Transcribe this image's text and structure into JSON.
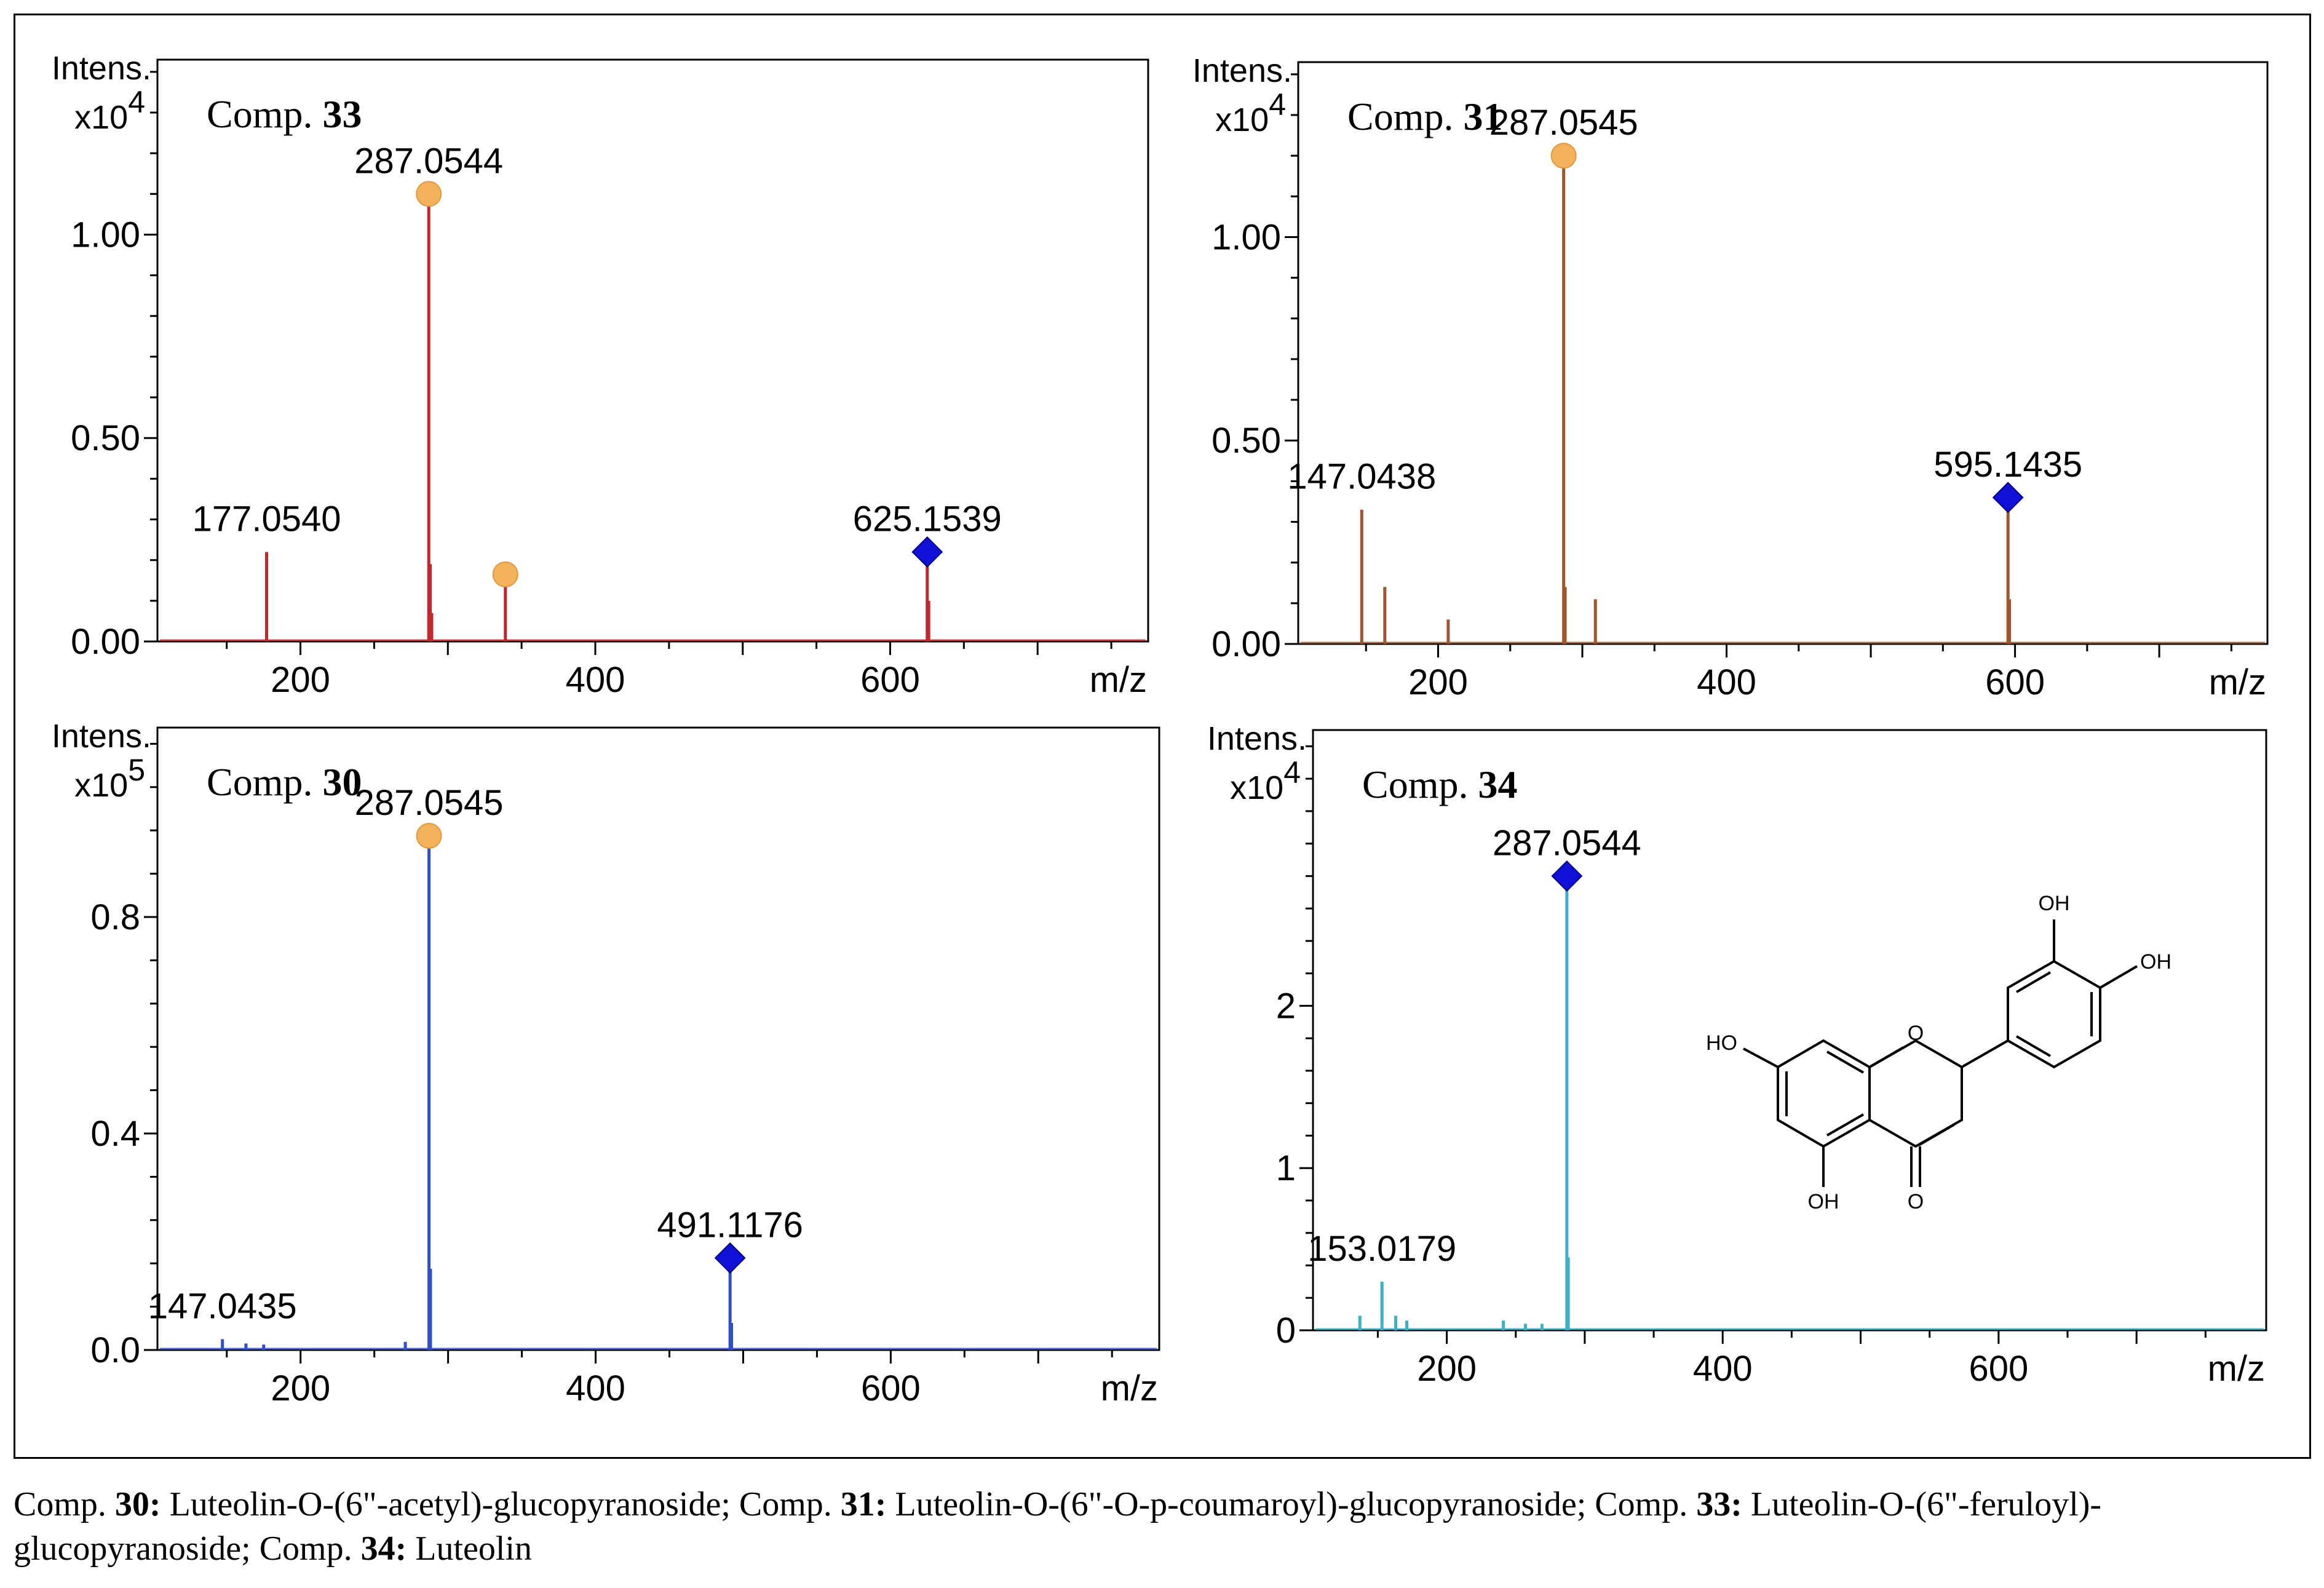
{
  "chart_data": [
    {
      "type": "bar",
      "subtype": "mass-spectrum-stick",
      "title_prefix": "Comp.",
      "title_number": "33",
      "ylabel": "Intens.",
      "yscale_label": "x10",
      "yscale_exp": "4",
      "xlabel": "m/z",
      "xlim": [
        103,
        775
      ],
      "ylim": [
        0,
        1.43
      ],
      "xticks": [
        200,
        400,
        600
      ],
      "xtick_labels": [
        "200",
        "400",
        "600"
      ],
      "yticks": [
        0,
        0.5,
        1.0
      ],
      "ytick_labels": [
        "0.00",
        "0.50",
        "1.00"
      ],
      "color": "#c0282d",
      "peaks": [
        {
          "mz": 177.054,
          "intensity": 0.22,
          "label": "177.0540"
        },
        {
          "mz": 287.0544,
          "intensity": 1.1,
          "label": "287.0544",
          "marker": "circle"
        },
        {
          "mz": 288.05,
          "intensity": 0.19
        },
        {
          "mz": 289.05,
          "intensity": 0.07
        },
        {
          "mz": 339.0,
          "intensity": 0.165,
          "marker": "circle"
        },
        {
          "mz": 625.1539,
          "intensity": 0.22,
          "label": "625.1539",
          "marker": "diamond"
        },
        {
          "mz": 626.15,
          "intensity": 0.1
        }
      ]
    },
    {
      "type": "bar",
      "subtype": "mass-spectrum-stick",
      "title_prefix": "Comp.",
      "title_number": "31",
      "ylabel": "Intens.",
      "yscale_label": "x10",
      "yscale_exp": "4",
      "xlabel": "m/z",
      "xlim": [
        103,
        775
      ],
      "ylim": [
        0,
        1.43
      ],
      "xticks": [
        200,
        400,
        600
      ],
      "xtick_labels": [
        "200",
        "400",
        "600"
      ],
      "yticks": [
        0,
        0.5,
        1.0
      ],
      "ytick_labels": [
        "0.00",
        "0.50",
        "1.00"
      ],
      "color": "#a0552d",
      "peaks": [
        {
          "mz": 147.0438,
          "intensity": 0.33,
          "label": "147.0438"
        },
        {
          "mz": 163.04,
          "intensity": 0.14
        },
        {
          "mz": 207.0,
          "intensity": 0.06
        },
        {
          "mz": 287.0545,
          "intensity": 1.2,
          "label": "287.0545",
          "marker": "circle"
        },
        {
          "mz": 288.05,
          "intensity": 0.14
        },
        {
          "mz": 309.04,
          "intensity": 0.11
        },
        {
          "mz": 595.1435,
          "intensity": 0.36,
          "label": "595.1435",
          "marker": "diamond"
        },
        {
          "mz": 596.15,
          "intensity": 0.11
        }
      ]
    },
    {
      "type": "bar",
      "subtype": "mass-spectrum-stick",
      "title_prefix": "Comp.",
      "title_number": "30",
      "ylabel": "Intens.",
      "yscale_label": "x10",
      "yscale_exp": "5",
      "xlabel": "m/z",
      "xlim": [
        103,
        782
      ],
      "ylim": [
        0,
        1.15
      ],
      "xticks": [
        200,
        400,
        600
      ],
      "xtick_labels": [
        "200",
        "400",
        "600"
      ],
      "yticks": [
        0,
        0.4,
        0.8
      ],
      "ytick_labels": [
        "0.0",
        "0.4",
        "0.8"
      ],
      "color": "#3050c8",
      "peaks": [
        {
          "mz": 147.0435,
          "intensity": 0.02,
          "label": "147.0435"
        },
        {
          "mz": 163.0,
          "intensity": 0.012
        },
        {
          "mz": 175.0,
          "intensity": 0.01
        },
        {
          "mz": 271.0,
          "intensity": 0.015
        },
        {
          "mz": 287.0545,
          "intensity": 0.95,
          "label": "287.0545",
          "marker": "circle"
        },
        {
          "mz": 288.05,
          "intensity": 0.15
        },
        {
          "mz": 491.1176,
          "intensity": 0.17,
          "label": "491.1176",
          "marker": "diamond"
        },
        {
          "mz": 492.12,
          "intensity": 0.05
        }
      ]
    },
    {
      "type": "bar",
      "subtype": "mass-spectrum-stick",
      "title_prefix": "Comp.",
      "title_number": "34",
      "ylabel": "Intens.",
      "yscale_label": "x10",
      "yscale_exp": "4",
      "xlabel": "m/z",
      "xlim": [
        103,
        794
      ],
      "ylim": [
        0,
        3.7
      ],
      "xticks": [
        200,
        400,
        600
      ],
      "xtick_labels": [
        "200",
        "400",
        "600"
      ],
      "yticks": [
        0,
        1,
        2
      ],
      "ytick_labels": [
        "0",
        "1",
        "2"
      ],
      "color": "#3cb0c8",
      "peaks": [
        {
          "mz": 137.0,
          "intensity": 0.09
        },
        {
          "mz": 153.0179,
          "intensity": 0.3,
          "label": "153.0179"
        },
        {
          "mz": 163.0,
          "intensity": 0.09
        },
        {
          "mz": 171.0,
          "intensity": 0.06
        },
        {
          "mz": 241.0,
          "intensity": 0.06
        },
        {
          "mz": 257.0,
          "intensity": 0.04
        },
        {
          "mz": 269.0,
          "intensity": 0.04
        },
        {
          "mz": 287.0544,
          "intensity": 2.8,
          "label": "287.0544",
          "marker": "diamond"
        },
        {
          "mz": 288.05,
          "intensity": 0.45
        }
      ],
      "structure_labels": [
        "OH",
        "OH",
        "HO",
        "OH",
        "O",
        "O"
      ]
    }
  ],
  "caption": {
    "items": [
      {
        "prefix": "Comp. ",
        "number": "30:",
        "text": "Luteolin-O-(6\"-acetyl)-glucopyranoside;"
      },
      {
        "prefix": "Comp. ",
        "number": "31:",
        "text": "Luteolin-O-(6\"-O-p-coumaroyl)-glucopyranoside;"
      },
      {
        "prefix": "Comp. ",
        "number": "33:",
        "text": "Luteolin-O-(6\"-feruloyl)-glucopyranoside;"
      },
      {
        "prefix": "Comp. ",
        "number": "34:",
        "text": "Luteolin"
      }
    ]
  },
  "colors": {
    "circle_marker": "#f5b25c",
    "diamond_marker": "#1010d8",
    "axis": "#000000"
  }
}
